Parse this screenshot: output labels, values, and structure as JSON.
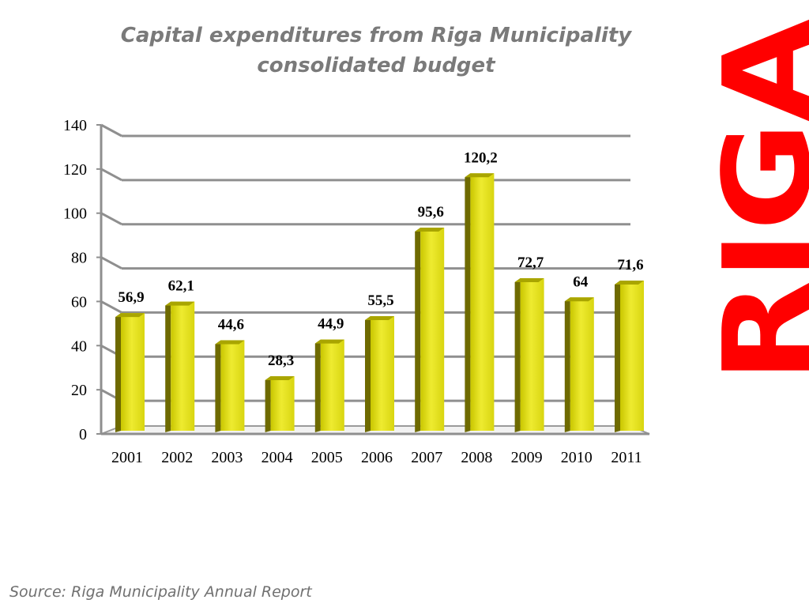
{
  "chart_data": {
    "type": "bar",
    "title": "Capital expenditures from Riga Municipality consolidated budget",
    "categories": [
      "2001",
      "2002",
      "2003",
      "2004",
      "2005",
      "2006",
      "2007",
      "2008",
      "2009",
      "2010",
      "2011"
    ],
    "values": [
      56.9,
      62.1,
      44.6,
      28.3,
      44.9,
      55.5,
      95.6,
      120.2,
      72.7,
      64,
      71.6
    ],
    "data_labels": [
      "56,9",
      "62,1",
      "44,6",
      "28,3",
      "44,9",
      "55,5",
      "95,6",
      "120,2",
      "72,7",
      "64",
      "71,6"
    ],
    "yticks": [
      "0",
      "20",
      "40",
      "60",
      "80",
      "100",
      "120",
      "140"
    ],
    "ylim": [
      0,
      140
    ],
    "xlabel": "",
    "ylabel": "",
    "grid": true,
    "bar_color": "#e6e31a",
    "bar_shadow_color": "#6e6a00"
  },
  "source": "Source: Riga Municipality Annual Report",
  "logo": {
    "text": "RIGA",
    "color": "#ff0000"
  }
}
